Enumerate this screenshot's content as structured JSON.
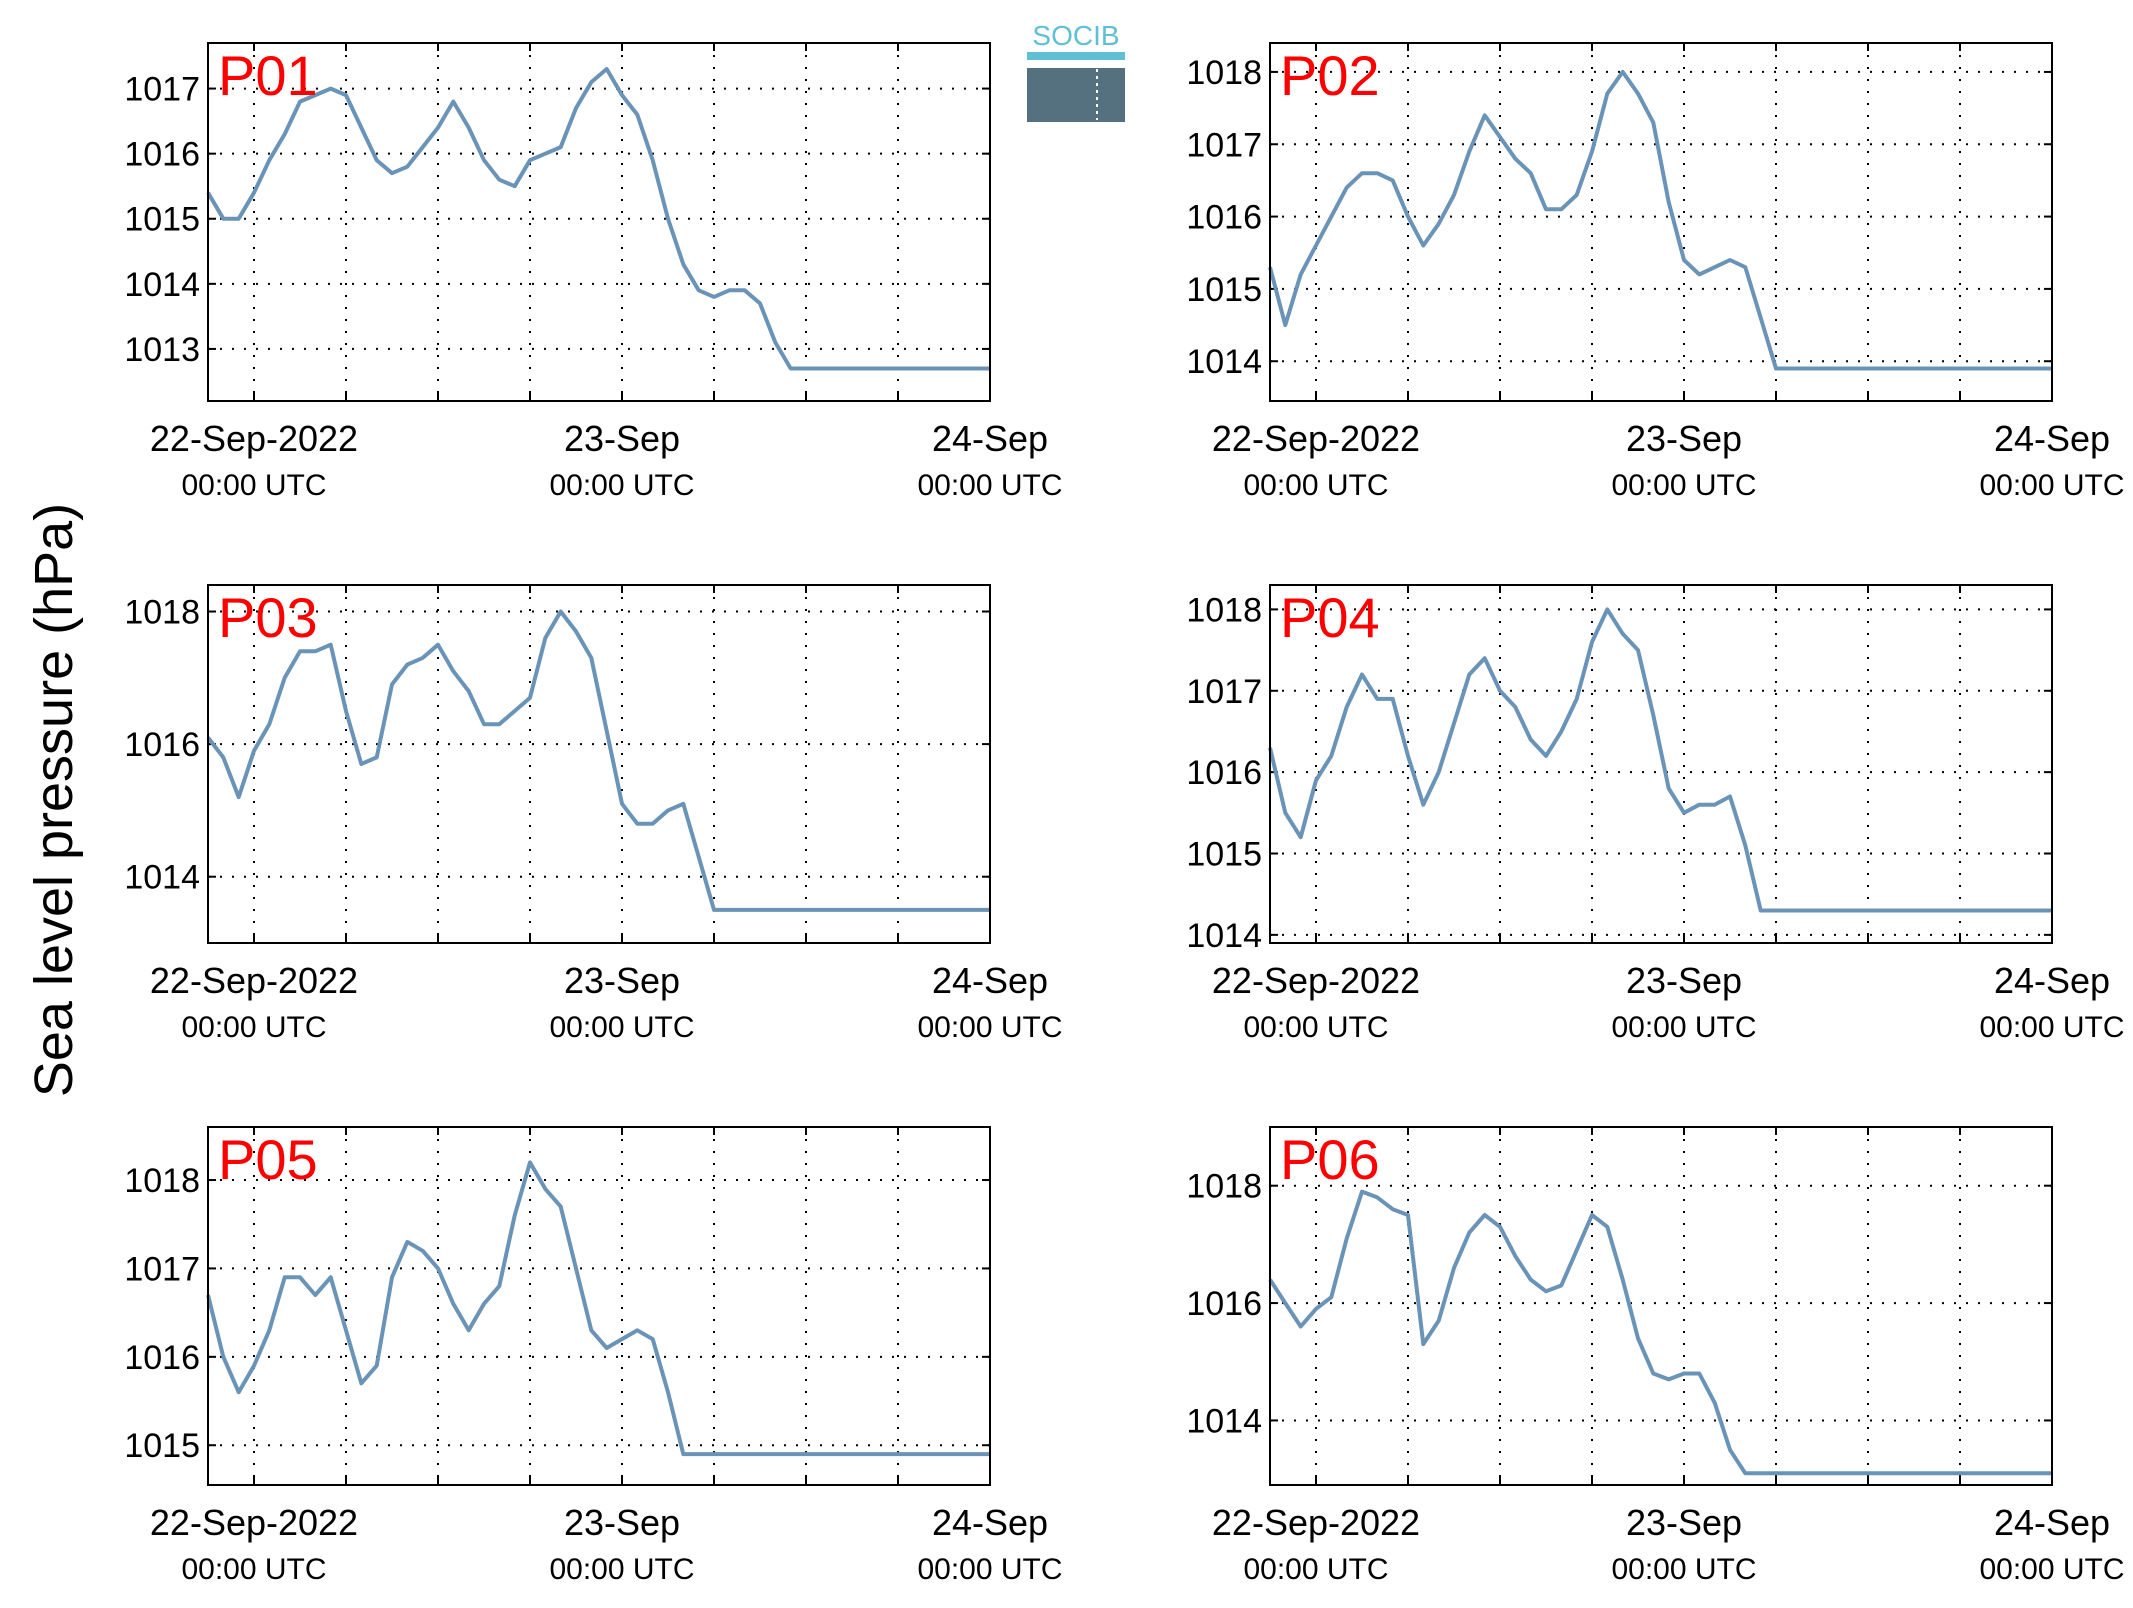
{
  "figure": {
    "ylabel": "Sea level pressure (hPa)",
    "logo_text": "SOCIB",
    "colors": {
      "line": "#6a93b8",
      "panel_label": "#ff0000",
      "axis": "#000000",
      "grid": "#000000"
    },
    "xtick_labels": [
      {
        "date": "22-Sep-2022",
        "time": "00:00 UTC"
      },
      {
        "date": "23-Sep",
        "time": "00:00 UTC"
      },
      {
        "date": "24-Sep",
        "time": "00:00 UTC"
      }
    ]
  },
  "chart_data": [
    {
      "type": "line",
      "label": "P01",
      "xlim": [
        -3,
        48
      ],
      "ylim": [
        1012.2,
        1017.7
      ],
      "yticks": [
        1013,
        1014,
        1015,
        1016,
        1017
      ],
      "x": [
        -3,
        -2,
        -1,
        0,
        1,
        2,
        3,
        4,
        5,
        6,
        7,
        8,
        9,
        10,
        11,
        12,
        13,
        14,
        15,
        16,
        17,
        18,
        19,
        20,
        21,
        22,
        23,
        24,
        25,
        26,
        27,
        28,
        29,
        30,
        31,
        32,
        33,
        34,
        35,
        36,
        37,
        38,
        39,
        40,
        41,
        42,
        43,
        44,
        45,
        46,
        47,
        48
      ],
      "values": [
        1015.4,
        1015.0,
        1015.0,
        1015.4,
        1015.9,
        1016.3,
        1016.8,
        1016.9,
        1017.0,
        1016.9,
        1016.4,
        1015.9,
        1015.7,
        1015.8,
        1016.1,
        1016.4,
        1016.8,
        1016.4,
        1015.9,
        1015.6,
        1015.5,
        1015.9,
        1016.0,
        1016.1,
        1016.7,
        1017.1,
        1017.3,
        1016.9,
        1016.6,
        1015.9,
        1015.0,
        1014.3,
        1013.9,
        1013.8,
        1013.9,
        1013.9,
        1013.7,
        1013.1,
        1012.7,
        1012.7,
        1012.7,
        1012.7,
        1012.7,
        1012.7,
        1012.7,
        1012.7,
        1012.7,
        1012.7,
        1012.7,
        1012.7,
        1012.7,
        1012.7
      ]
    },
    {
      "type": "line",
      "label": "P02",
      "xlim": [
        -3,
        48
      ],
      "ylim": [
        1013.45,
        1018.4
      ],
      "yticks": [
        1014,
        1015,
        1016,
        1017,
        1018
      ],
      "x": [
        -3,
        -2,
        -1,
        0,
        1,
        2,
        3,
        4,
        5,
        6,
        7,
        8,
        9,
        10,
        11,
        12,
        13,
        14,
        15,
        16,
        17,
        18,
        19,
        20,
        21,
        22,
        23,
        24,
        25,
        26,
        27,
        28,
        29,
        30,
        31,
        32,
        33,
        34,
        35,
        36,
        37,
        38,
        39,
        40,
        41,
        42,
        43,
        44,
        45,
        46,
        47,
        48
      ],
      "values": [
        1015.3,
        1014.5,
        1015.2,
        1015.6,
        1016.0,
        1016.4,
        1016.6,
        1016.6,
        1016.5,
        1016.0,
        1015.6,
        1015.9,
        1016.3,
        1016.9,
        1017.4,
        1017.1,
        1016.8,
        1016.6,
        1016.1,
        1016.1,
        1016.3,
        1016.9,
        1017.7,
        1018.0,
        1017.7,
        1017.3,
        1016.2,
        1015.4,
        1015.2,
        1015.3,
        1015.4,
        1015.3,
        1014.6,
        1013.9,
        1013.9,
        1013.9,
        1013.9,
        1013.9,
        1013.9,
        1013.9,
        1013.9,
        1013.9,
        1013.9,
        1013.9,
        1013.9,
        1013.9,
        1013.9,
        1013.9,
        1013.9,
        1013.9,
        1013.9,
        1013.9
      ]
    },
    {
      "type": "line",
      "label": "P03",
      "xlim": [
        -3,
        48
      ],
      "ylim": [
        1013.0,
        1018.4
      ],
      "yticks": [
        1014,
        1016,
        1018
      ],
      "x": [
        -3,
        -2,
        -1,
        0,
        1,
        2,
        3,
        4,
        5,
        6,
        7,
        8,
        9,
        10,
        11,
        12,
        13,
        14,
        15,
        16,
        17,
        18,
        19,
        20,
        21,
        22,
        23,
        24,
        25,
        26,
        27,
        28,
        29,
        30,
        31,
        32,
        33,
        34,
        35,
        36,
        37,
        38,
        39,
        40,
        41,
        42,
        43,
        44,
        45,
        46,
        47,
        48
      ],
      "values": [
        1016.1,
        1015.8,
        1015.2,
        1015.9,
        1016.3,
        1017.0,
        1017.4,
        1017.4,
        1017.5,
        1016.5,
        1015.7,
        1015.8,
        1016.9,
        1017.2,
        1017.3,
        1017.5,
        1017.1,
        1016.8,
        1016.3,
        1016.3,
        1016.5,
        1016.7,
        1017.6,
        1018.0,
        1017.7,
        1017.3,
        1016.2,
        1015.1,
        1014.8,
        1014.8,
        1015.0,
        1015.1,
        1014.3,
        1013.5,
        1013.5,
        1013.5,
        1013.5,
        1013.5,
        1013.5,
        1013.5,
        1013.5,
        1013.5,
        1013.5,
        1013.5,
        1013.5,
        1013.5,
        1013.5,
        1013.5,
        1013.5,
        1013.5,
        1013.5,
        1013.5
      ]
    },
    {
      "type": "line",
      "label": "P04",
      "xlim": [
        -3,
        48
      ],
      "ylim": [
        1013.9,
        1018.3
      ],
      "yticks": [
        1014,
        1015,
        1016,
        1017,
        1018
      ],
      "x": [
        -3,
        -2,
        -1,
        0,
        1,
        2,
        3,
        4,
        5,
        6,
        7,
        8,
        9,
        10,
        11,
        12,
        13,
        14,
        15,
        16,
        17,
        18,
        19,
        20,
        21,
        22,
        23,
        24,
        25,
        26,
        27,
        28,
        29,
        30,
        31,
        32,
        33,
        34,
        35,
        36,
        37,
        38,
        39,
        40,
        41,
        42,
        43,
        44,
        45,
        46,
        47,
        48
      ],
      "values": [
        1016.3,
        1015.5,
        1015.2,
        1015.9,
        1016.2,
        1016.8,
        1017.2,
        1016.9,
        1016.9,
        1016.2,
        1015.6,
        1016.0,
        1016.6,
        1017.2,
        1017.4,
        1017.0,
        1016.8,
        1016.4,
        1016.2,
        1016.5,
        1016.9,
        1017.6,
        1018.0,
        1017.7,
        1017.5,
        1016.7,
        1015.8,
        1015.5,
        1015.6,
        1015.6,
        1015.7,
        1015.1,
        1014.3,
        1014.3,
        1014.3,
        1014.3,
        1014.3,
        1014.3,
        1014.3,
        1014.3,
        1014.3,
        1014.3,
        1014.3,
        1014.3,
        1014.3,
        1014.3,
        1014.3,
        1014.3,
        1014.3,
        1014.3,
        1014.3,
        1014.3
      ]
    },
    {
      "type": "line",
      "label": "P05",
      "xlim": [
        -3,
        48
      ],
      "ylim": [
        1014.55,
        1018.6
      ],
      "yticks": [
        1015,
        1016,
        1017,
        1018
      ],
      "x": [
        -3,
        -2,
        -1,
        0,
        1,
        2,
        3,
        4,
        5,
        6,
        7,
        8,
        9,
        10,
        11,
        12,
        13,
        14,
        15,
        16,
        17,
        18,
        19,
        20,
        21,
        22,
        23,
        24,
        25,
        26,
        27,
        28,
        29,
        30,
        31,
        32,
        33,
        34,
        35,
        36,
        37,
        38,
        39,
        40,
        41,
        42,
        43,
        44,
        45,
        46,
        47,
        48
      ],
      "values": [
        1016.7,
        1016.0,
        1015.6,
        1015.9,
        1016.3,
        1016.9,
        1016.9,
        1016.7,
        1016.9,
        1016.3,
        1015.7,
        1015.9,
        1016.9,
        1017.3,
        1017.2,
        1017.0,
        1016.6,
        1016.3,
        1016.6,
        1016.8,
        1017.6,
        1018.2,
        1017.9,
        1017.7,
        1017.0,
        1016.3,
        1016.1,
        1016.2,
        1016.3,
        1016.2,
        1015.6,
        1014.9,
        1014.9,
        1014.9,
        1014.9,
        1014.9,
        1014.9,
        1014.9,
        1014.9,
        1014.9,
        1014.9,
        1014.9,
        1014.9,
        1014.9,
        1014.9,
        1014.9,
        1014.9,
        1014.9,
        1014.9,
        1014.9,
        1014.9,
        1014.9
      ]
    },
    {
      "type": "line",
      "label": "P06",
      "xlim": [
        -3,
        48
      ],
      "ylim": [
        1012.9,
        1019.0
      ],
      "yticks": [
        1014,
        1016,
        1018
      ],
      "x": [
        -3,
        -2,
        -1,
        0,
        1,
        2,
        3,
        4,
        5,
        6,
        7,
        8,
        9,
        10,
        11,
        12,
        13,
        14,
        15,
        16,
        17,
        18,
        19,
        20,
        21,
        22,
        23,
        24,
        25,
        26,
        27,
        28,
        29,
        30,
        31,
        32,
        33,
        34,
        35,
        36,
        37,
        38,
        39,
        40,
        41,
        42,
        43,
        44,
        45,
        46,
        47,
        48
      ],
      "values": [
        1016.4,
        1016.0,
        1015.6,
        1015.9,
        1016.1,
        1017.1,
        1017.9,
        1017.8,
        1017.6,
        1017.5,
        1015.3,
        1015.7,
        1016.6,
        1017.2,
        1017.5,
        1017.3,
        1016.8,
        1016.4,
        1016.2,
        1016.3,
        1016.9,
        1017.5,
        1017.3,
        1016.4,
        1015.4,
        1014.8,
        1014.7,
        1014.8,
        1014.8,
        1014.3,
        1013.5,
        1013.1,
        1013.1,
        1013.1,
        1013.1,
        1013.1,
        1013.1,
        1013.1,
        1013.1,
        1013.1,
        1013.1,
        1013.1,
        1013.1,
        1013.1,
        1013.1,
        1013.1,
        1013.1,
        1013.1,
        1013.1,
        1013.1,
        1013.1,
        1013.1
      ]
    }
  ]
}
